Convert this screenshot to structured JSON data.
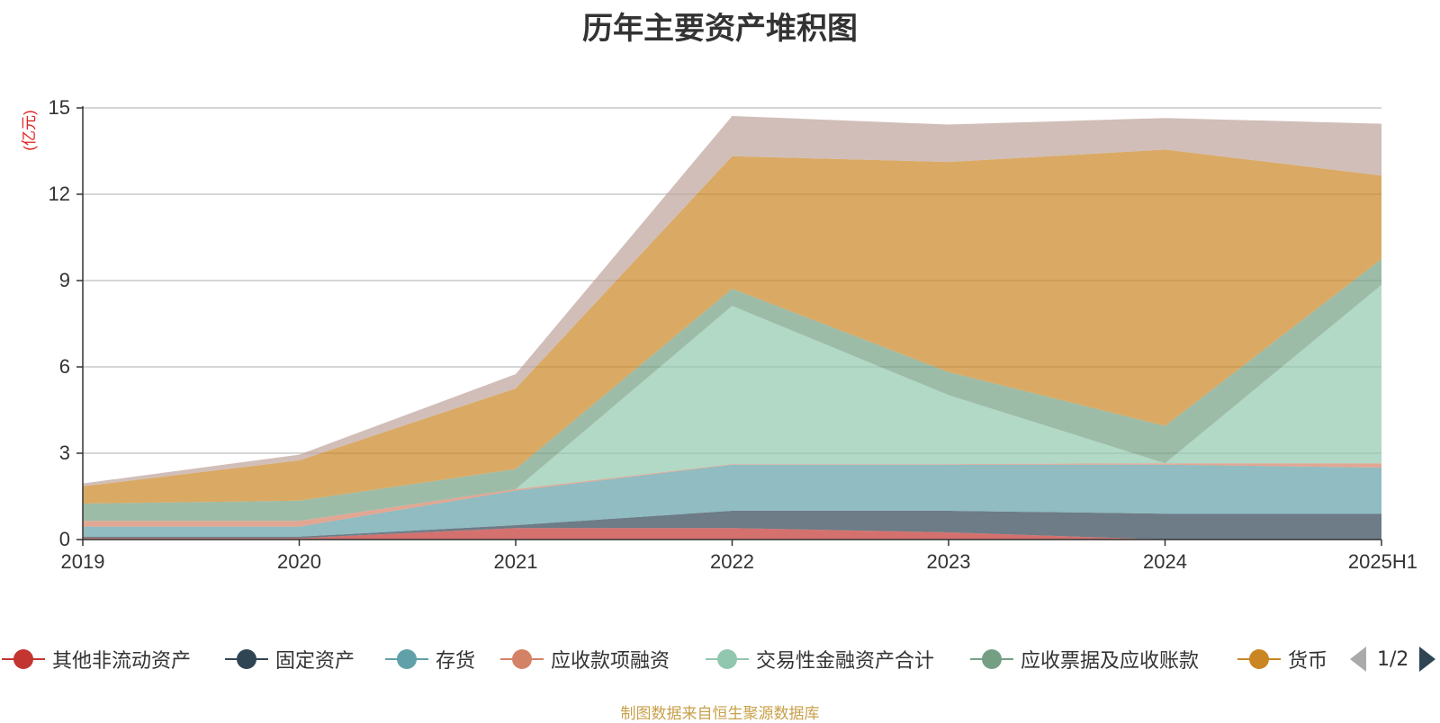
{
  "chart_data": {
    "type": "area",
    "stacked": true,
    "title": "历年主要资产堆积图",
    "ylabel": "亿元",
    "ylim": [
      0,
      15
    ],
    "yticks": [
      0,
      3,
      6,
      9,
      12,
      15
    ],
    "grid": true,
    "legend_position": "bottom",
    "categories": [
      "2019",
      "2020",
      "2021",
      "2022",
      "2023",
      "2024",
      "2025H1"
    ],
    "series": [
      {
        "name": "其他非流动资产",
        "color": "#c23531",
        "values": [
          0.05,
          0.05,
          0.4,
          0.4,
          0.25,
          0.0,
          0.0
        ]
      },
      {
        "name": "固定资产",
        "color": "#2f4554",
        "values": [
          0.05,
          0.05,
          0.1,
          0.6,
          0.75,
          0.9,
          0.9
        ]
      },
      {
        "name": "存货",
        "color": "#61a0a8",
        "values": [
          0.35,
          0.35,
          1.2,
          1.6,
          1.6,
          1.7,
          1.6
        ]
      },
      {
        "name": "应收款项融资",
        "color": "#d48265",
        "values": [
          0.2,
          0.2,
          0.05,
          0.02,
          0.02,
          0.05,
          0.15
        ]
      },
      {
        "name": "交易性金融资产合计",
        "color": "#91c7ae",
        "values": [
          0.0,
          0.0,
          0.0,
          5.5,
          2.4,
          0.0,
          6.2
        ]
      },
      {
        "name": "应收票据及应收账款",
        "color": "#749f83",
        "values": [
          0.6,
          0.7,
          0.7,
          0.6,
          0.8,
          1.3,
          0.9
        ]
      },
      {
        "name": "货币",
        "color": "#ca8622",
        "values": [
          0.6,
          1.4,
          2.8,
          4.6,
          7.3,
          9.6,
          2.9
        ]
      },
      {
        "name": "",
        "color": "#bda29a",
        "values": [
          0.1,
          0.2,
          0.5,
          1.4,
          1.3,
          1.1,
          1.8
        ]
      }
    ]
  },
  "legend": {
    "page_indicator": "1/2",
    "prev_icon": "triangle-left-icon",
    "next_icon": "triangle-right-icon"
  },
  "source_note": "制图数据来自恒生聚源数据库"
}
